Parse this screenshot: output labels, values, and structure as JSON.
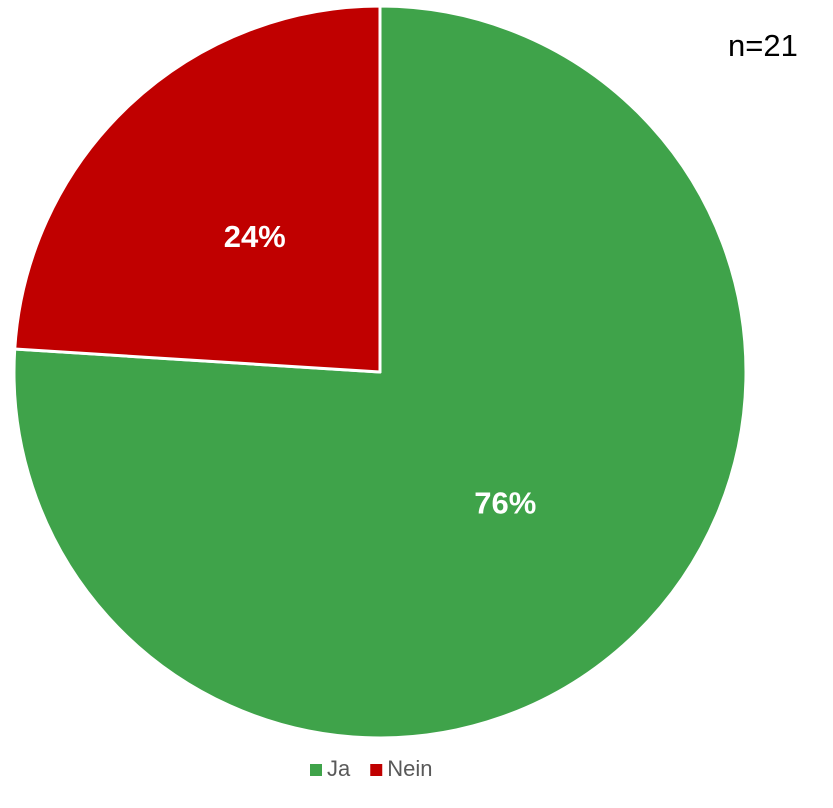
{
  "chart_data": {
    "type": "pie",
    "annotation": "n=21",
    "categories": [
      "Ja",
      "Nein"
    ],
    "values": [
      76,
      24
    ],
    "value_labels": [
      "76%",
      "24%"
    ],
    "colors": [
      "#3fa34a",
      "#c00000"
    ],
    "legend": "bottom"
  }
}
